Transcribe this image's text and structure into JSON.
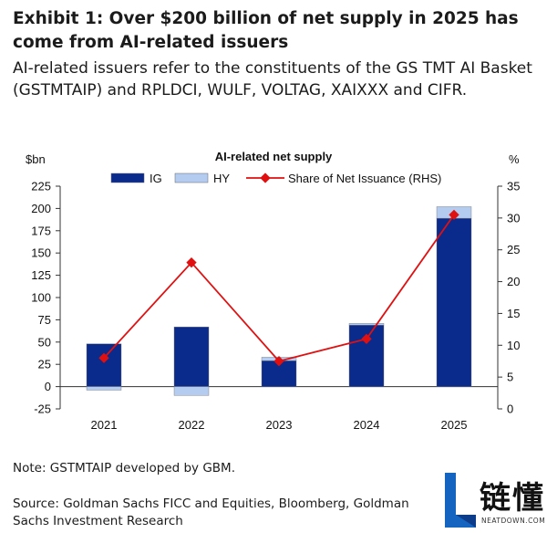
{
  "title": "Exhibit 1: Over $200 billion of net supply in 2025 has come from AI-related issuers",
  "subtitle": "AI-related issuers refer to the constituents of the GS TMT AI Basket (GSTMTAIP) and RPLDCI, WULF, VOLTAG, XAIXXX and CIFR.",
  "note": "Note: GSTMTAIP developed by GBM.",
  "source": "Source: Goldman Sachs FICC and Equities, Bloomberg, Goldman Sachs Investment Research",
  "logo": {
    "text": "链懂",
    "url": "NEATDOWN.COM",
    "color": "#1565c0"
  },
  "chart_data": {
    "type": "bar",
    "title": "AI-related net supply",
    "ylabel": "$bn",
    "y2label": "%",
    "categories": [
      "2021",
      "2022",
      "2023",
      "2024",
      "2025"
    ],
    "ylim": [
      -25,
      225
    ],
    "yticks": [
      -25,
      0,
      25,
      50,
      75,
      100,
      125,
      150,
      175,
      200,
      225
    ],
    "y2lim": [
      0,
      35
    ],
    "y2ticks": [
      0,
      5,
      10,
      15,
      20,
      25,
      30,
      35
    ],
    "series": [
      {
        "name": "IG",
        "kind": "bar",
        "color": "#0a2a8c",
        "values": [
          48,
          67,
          29,
          69,
          189
        ]
      },
      {
        "name": "HY",
        "kind": "bar",
        "color": "#b3ccf0",
        "values": [
          -4,
          -10,
          4,
          2,
          13
        ]
      },
      {
        "name": "Share of Net Issuance (RHS)",
        "kind": "line",
        "axis": "right",
        "color": "#e01010",
        "values": [
          8,
          23,
          7.5,
          11,
          30.5
        ]
      }
    ]
  }
}
